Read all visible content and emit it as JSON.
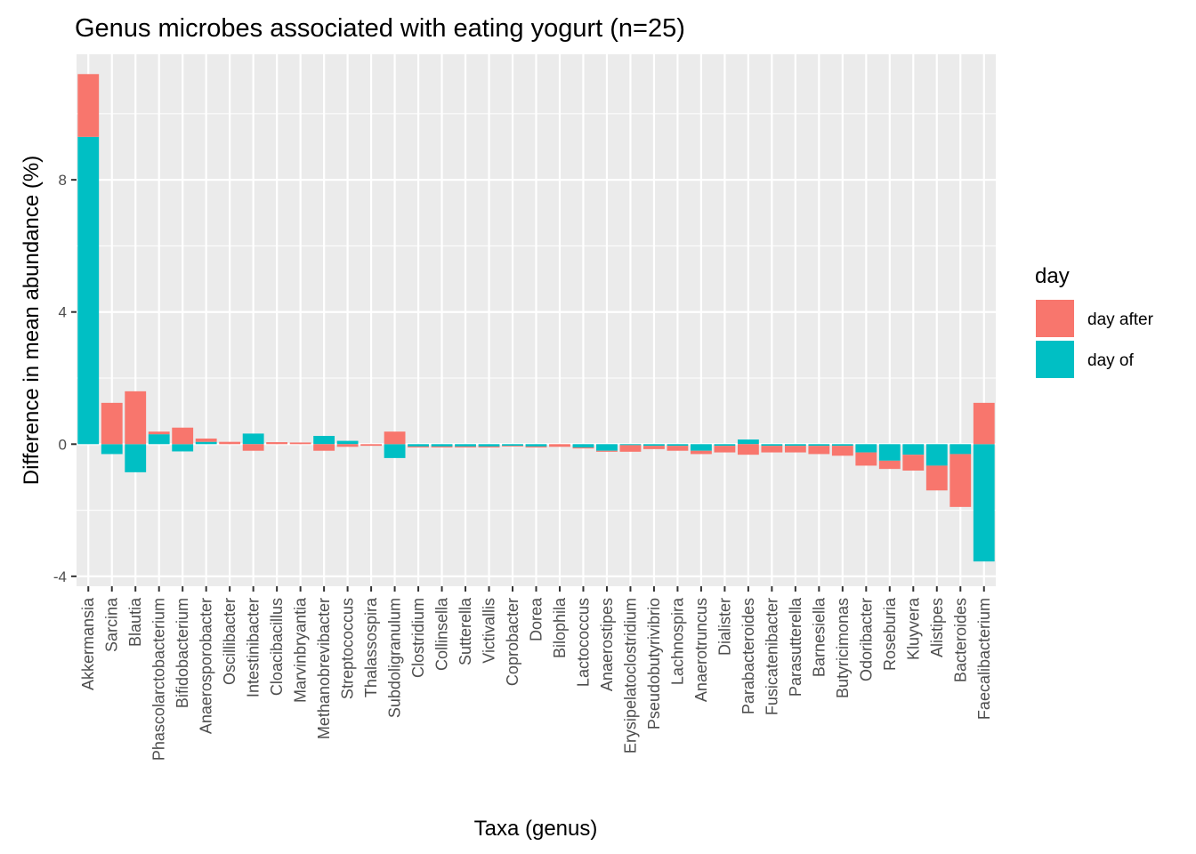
{
  "chart_data": {
    "type": "bar",
    "stacked": true,
    "title": "Genus microbes associated with eating yogurt (n=25)",
    "xlabel": "Taxa (genus)",
    "ylabel": "Difference in mean abundance (%)",
    "ylim": [
      -4.3,
      11.8
    ],
    "yticks": [
      -4,
      0,
      4,
      8
    ],
    "grid": true,
    "legend": {
      "title": "day",
      "position": "right"
    },
    "categories": [
      "Akkermansia",
      "Sarcina",
      "Blautia",
      "Phascolarctobacterium",
      "Bifidobacterium",
      "Anaerosporobacter",
      "Oscillibacter",
      "Intestinibacter",
      "Cloacibacillus",
      "Marvinbryantia",
      "Methanobrevibacter",
      "Streptococcus",
      "Thalassospira",
      "Subdoligranulum",
      "Clostridium",
      "Collinsella",
      "Sutterella",
      "Victivallis",
      "Coprobacter",
      "Dorea",
      "Bilophila",
      "Lactococcus",
      "Anaerostipes",
      "Erysipelatoclostridium",
      "Pseudobutyrivibrio",
      "Lachnospira",
      "Anaerotruncus",
      "Dialister",
      "Parabacteroides",
      "Fusicatenibacter",
      "Parasutterella",
      "Barnesiella",
      "Butyricimonas",
      "Odoribacter",
      "Roseburia",
      "Kluyvera",
      "Alistipes",
      "Bacteroides",
      "Faecalibacterium"
    ],
    "series": [
      {
        "name": "day after",
        "color": "#F8766D",
        "values": [
          1.9,
          1.25,
          1.6,
          0.08,
          0.5,
          0.1,
          0.07,
          -0.2,
          0.06,
          0.05,
          -0.2,
          -0.08,
          -0.05,
          0.38,
          -0.03,
          -0.03,
          -0.03,
          -0.03,
          -0.02,
          -0.03,
          -0.08,
          -0.03,
          -0.03,
          -0.2,
          -0.1,
          -0.15,
          -0.1,
          -0.2,
          -0.32,
          -0.2,
          -0.2,
          -0.25,
          -0.3,
          -0.4,
          -0.25,
          -0.48,
          -0.75,
          -1.6,
          1.25
        ]
      },
      {
        "name": "day of",
        "color": "#00BFC4",
        "values": [
          9.3,
          -0.3,
          -0.85,
          0.3,
          -0.22,
          0.07,
          0.0,
          0.32,
          0.0,
          0.0,
          0.25,
          0.1,
          0.0,
          -0.42,
          -0.07,
          -0.07,
          -0.07,
          -0.07,
          -0.05,
          -0.07,
          0.0,
          -0.1,
          -0.2,
          -0.03,
          -0.05,
          -0.05,
          -0.2,
          -0.05,
          0.14,
          -0.05,
          -0.05,
          -0.05,
          -0.05,
          -0.25,
          -0.5,
          -0.32,
          -0.65,
          -0.3,
          -3.55
        ]
      }
    ]
  }
}
